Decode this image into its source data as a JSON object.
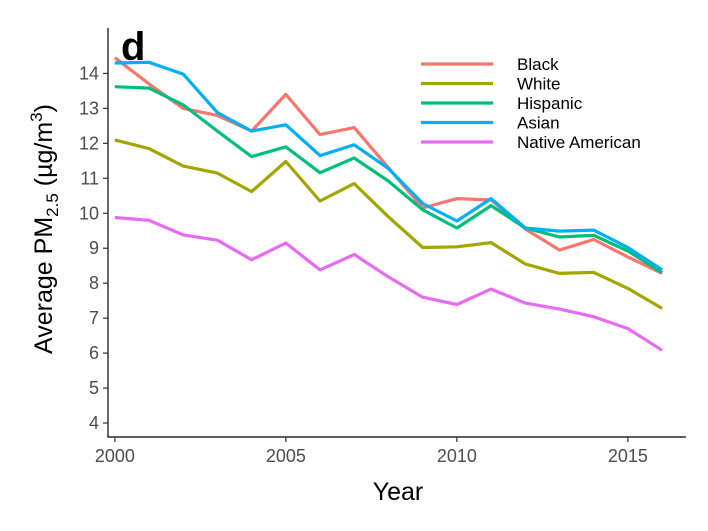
{
  "chart_data": {
    "type": "line",
    "panel_label": "d",
    "title": "",
    "xlabel": "Year",
    "ylabel": {
      "prefix": "Average PM",
      "subscript": "2.5",
      "unit_open": " (µg/m",
      "superscript": "3",
      "unit_close": ")"
    },
    "xlim": [
      1999.8,
      2016.7
    ],
    "ylim": [
      3.6,
      15.3
    ],
    "x_ticks": [
      2000,
      2005,
      2010,
      2015
    ],
    "y_ticks": [
      4,
      5,
      6,
      7,
      8,
      9,
      10,
      11,
      12,
      13,
      14
    ],
    "grid": false,
    "legend_position": "top-right",
    "x": [
      2000,
      2001,
      2002,
      2003,
      2004,
      2005,
      2006,
      2007,
      2008,
      2009,
      2010,
      2011,
      2012,
      2013,
      2014,
      2015,
      2016
    ],
    "series": [
      {
        "name": "Black",
        "color": "#F8766D",
        "values": [
          14.45,
          13.7,
          13.0,
          12.8,
          12.35,
          13.4,
          12.25,
          12.45,
          11.3,
          10.15,
          10.42,
          10.38,
          9.55,
          8.95,
          9.25,
          8.75,
          8.28
        ]
      },
      {
        "name": "White",
        "color": "#A3A500",
        "values": [
          12.1,
          11.85,
          11.35,
          11.15,
          10.62,
          11.48,
          10.35,
          10.85,
          9.9,
          9.02,
          9.04,
          9.16,
          8.55,
          8.28,
          8.31,
          7.85,
          7.28
        ]
      },
      {
        "name": "Hispanic",
        "color": "#00BF7D",
        "values": [
          13.62,
          13.58,
          13.1,
          12.35,
          11.62,
          11.9,
          11.16,
          11.58,
          10.92,
          10.1,
          9.58,
          10.22,
          9.58,
          9.32,
          9.37,
          8.92,
          8.3
        ]
      },
      {
        "name": "Asian",
        "color": "#00B0F6",
        "values": [
          14.3,
          14.32,
          13.98,
          12.88,
          12.35,
          12.53,
          11.65,
          11.96,
          11.28,
          10.28,
          9.78,
          10.42,
          9.58,
          9.49,
          9.52,
          9.02,
          8.38
        ]
      },
      {
        "name": "Native American",
        "color": "#E76BF3",
        "values": [
          9.88,
          9.8,
          9.38,
          9.23,
          8.67,
          9.15,
          8.38,
          8.82,
          8.18,
          7.6,
          7.39,
          7.83,
          7.43,
          7.26,
          7.04,
          6.7,
          6.08
        ]
      }
    ]
  }
}
